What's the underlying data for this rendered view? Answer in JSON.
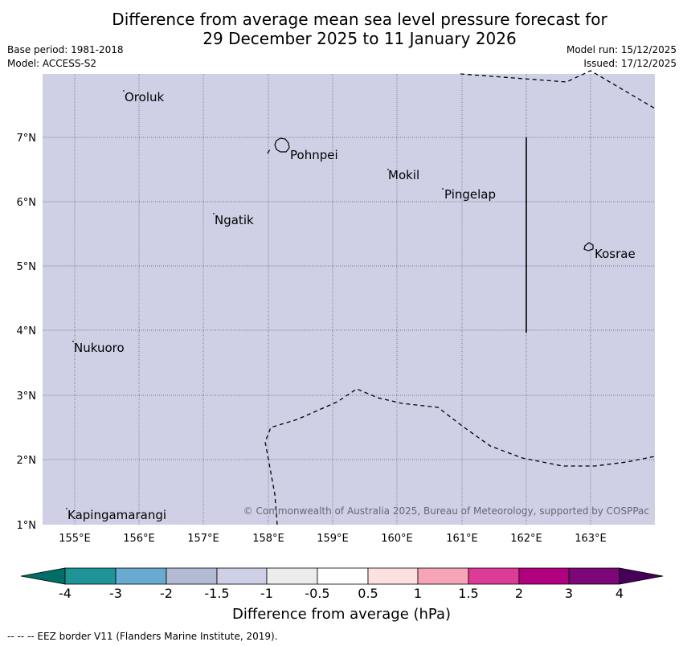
{
  "title_line1": "Difference from average mean sea level pressure forecast for",
  "title_line2": "29 December 2025 to 11 January 2026",
  "base_period": "Base period: 1981-2018",
  "model": "Model: ACCESS-S2",
  "model_run": "Model run: 15/12/2025",
  "issued": "Issued: 17/12/2025",
  "lon_labels": [
    "155°E",
    "156°E",
    "157°E",
    "158°E",
    "159°E",
    "160°E",
    "161°E",
    "162°E",
    "163°E"
  ],
  "lat_labels": [
    "7°N",
    "6°N",
    "5°N",
    "4°N",
    "3°N",
    "2°N",
    "1°N"
  ],
  "places": [
    "Oroluk",
    "Pohnpei",
    "Mokil",
    "Pingelap",
    "Ngatik",
    "Kosrae",
    "Nukuoro",
    "Kapingamarangi"
  ],
  "copyright": "© Commonwealth of Australia 2025, Bureau of Meteorology, supported by COSPPac",
  "colorbar": {
    "labels": [
      "-4",
      "-3",
      "-2",
      "-1.5",
      "-1",
      "-0.5",
      "0.5",
      "1",
      "1.5",
      "2",
      "3",
      "4"
    ],
    "colors": [
      "#006e66",
      "#1f9497",
      "#68aad0",
      "#b3bad4",
      "#cfd0e6",
      "#ececec",
      "#ffffff",
      "#ffe0e0",
      "#f7a4b9",
      "#dd3b98",
      "#b0007f",
      "#7b0779",
      "#46005a"
    ],
    "title": "Difference from average (hPa)"
  },
  "map_fill_color": "#cfd0e6",
  "footer": "--  --  -- EEZ border V11 (Flanders Marine Institute, 2019)."
}
